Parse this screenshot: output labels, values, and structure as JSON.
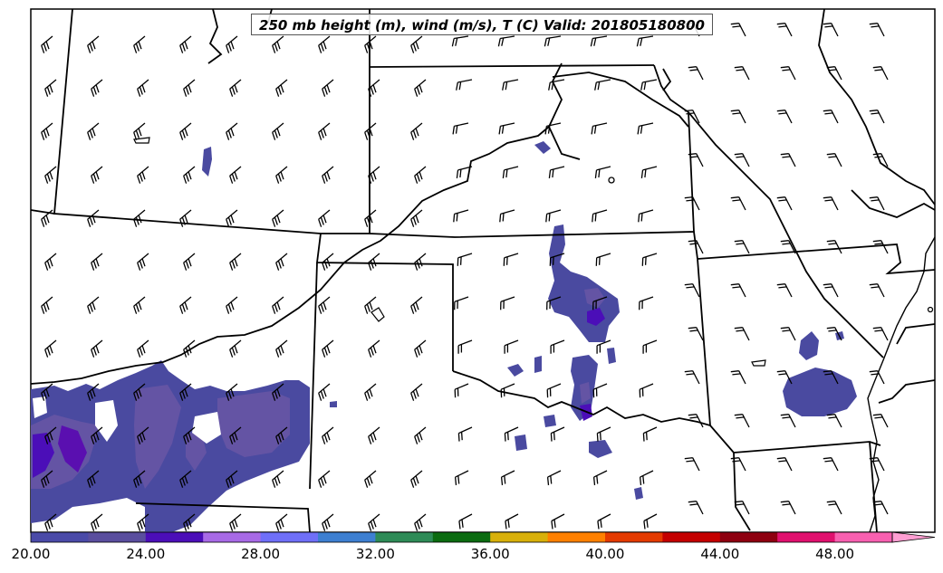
{
  "title": "250 mb height (m), wind (m/s), T (C) Valid: 201805180800",
  "colorbar": {
    "tick_labels": [
      "20.00",
      "24.00",
      "28.00",
      "32.00",
      "36.00",
      "40.00",
      "44.00",
      "48.00"
    ],
    "colors": [
      "#4a4aa8",
      "#5a4e9e",
      "#4b0eb8",
      "#a86ae6",
      "#6f6ff8",
      "#3d7fd1",
      "#2e8b57",
      "#0b6b10",
      "#d8b00a",
      "#ff8000",
      "#e43a00",
      "#c40000",
      "#8e0010",
      "#e0106e",
      "#f860b0"
    ],
    "extend_color": "#ff9ed2"
  },
  "shading_color": "#4a4aa0"
}
